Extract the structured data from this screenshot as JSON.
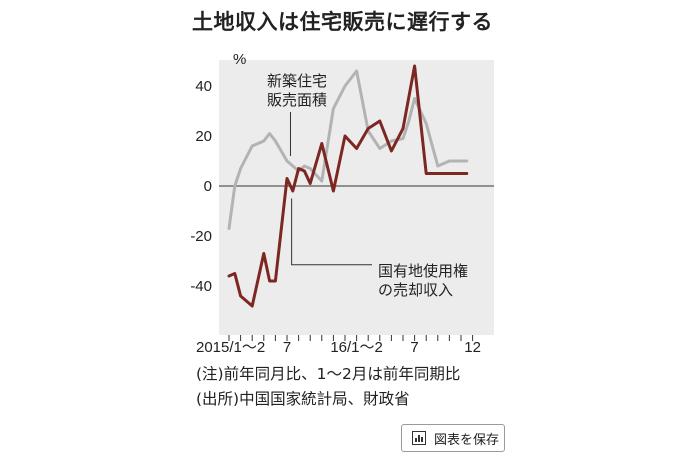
{
  "chart_data": {
    "type": "line",
    "title": "土地収入は住宅販売に遅行する",
    "ylabel": "%",
    "ylim": [
      -58,
      58
    ],
    "yticks": [
      40,
      20,
      0,
      -20,
      -40
    ],
    "ytick_labels": [
      "40",
      "20",
      "0",
      "-20",
      "-40"
    ],
    "x": [
      1,
      2,
      3,
      4,
      5,
      6,
      7,
      8,
      9,
      10,
      11,
      12,
      13,
      14,
      15,
      16,
      17,
      18,
      19,
      20,
      21,
      22
    ],
    "xticks": [
      1,
      6,
      12,
      17,
      22
    ],
    "xtick_labels": [
      "2015/1〜2",
      "7",
      "16/1〜2",
      "7",
      "12"
    ],
    "grid": false,
    "series": [
      {
        "name": "新築住宅販売面積",
        "name_lines": [
          "新築住宅",
          "販売面積"
        ],
        "color": "#b3b3b3",
        "x": [
          1,
          1.5,
          2,
          3,
          4,
          4.5,
          5,
          6,
          7,
          7.5,
          8,
          9,
          10,
          11,
          12,
          13,
          14,
          15,
          16,
          16.5,
          17,
          18,
          19,
          20,
          21,
          21.5
        ],
        "values": [
          -17,
          0,
          7,
          16,
          18,
          21,
          18,
          10,
          6,
          8,
          7,
          2,
          31,
          40,
          46,
          22,
          15,
          18,
          19,
          26,
          35,
          25,
          8,
          10,
          10,
          10
        ]
      },
      {
        "name": "国有地使用権の売却収入",
        "name_lines": [
          "国有地使用権",
          "の売却収入"
        ],
        "color": "#7d2722",
        "x": [
          1,
          1.5,
          2,
          3,
          4,
          4.5,
          5,
          6,
          6.5,
          7,
          7.5,
          8,
          9,
          10,
          11,
          12,
          13,
          14,
          15,
          16,
          17,
          18,
          19,
          20,
          20.5,
          21.5
        ],
        "values": [
          -36,
          -35,
          -44,
          -48,
          -27,
          -38,
          -38,
          3,
          -2,
          7,
          6,
          1,
          17,
          -2,
          20,
          15,
          23,
          26,
          14,
          23,
          48,
          5,
          5,
          5,
          5,
          5
        ]
      }
    ]
  },
  "notes": [
    "(注)前年同月比、1〜2月は前年同期比",
    "(出所)中国国家統計局、財政省"
  ],
  "save_button": {
    "label": "図表を保存",
    "icon": "bar-chart-icon"
  }
}
